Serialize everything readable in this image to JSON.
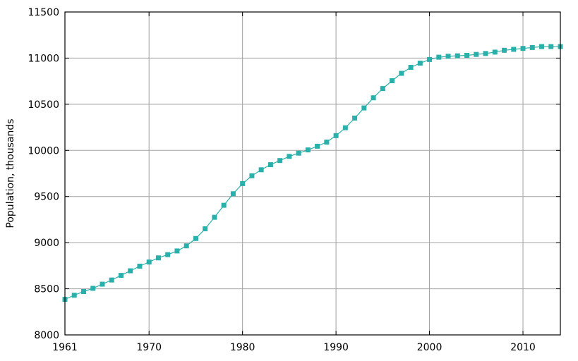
{
  "chart_data": {
    "type": "line",
    "title": "",
    "xlabel": "",
    "ylabel": "Population, thousands",
    "xlim": [
      1961,
      2014
    ],
    "ylim": [
      8000,
      11500
    ],
    "grid": true,
    "legend": "none",
    "x_ticks": [
      1961,
      1970,
      1980,
      1990,
      2000,
      2010
    ],
    "x_tick_labels": [
      "1961",
      "1970",
      "1980",
      "1990",
      "2000",
      "2010"
    ],
    "y_ticks": [
      8000,
      8500,
      9000,
      9500,
      10000,
      10500,
      11000,
      11500
    ],
    "y_tick_labels": [
      "8000",
      "8500",
      "9000",
      "9500",
      "10000",
      "10500",
      "11000",
      "11500"
    ],
    "series": [
      {
        "color": "#2ab0aa",
        "x": [
          1961,
          1962,
          1963,
          1964,
          1965,
          1966,
          1967,
          1968,
          1969,
          1970,
          1971,
          1972,
          1973,
          1974,
          1975,
          1976,
          1977,
          1978,
          1979,
          1980,
          1981,
          1982,
          1983,
          1984,
          1985,
          1986,
          1987,
          1988,
          1989,
          1990,
          1991,
          1992,
          1993,
          1994,
          1995,
          1996,
          1997,
          1998,
          1999,
          2000,
          2001,
          2002,
          2003,
          2004,
          2005,
          2006,
          2007,
          2008,
          2009,
          2010,
          2011,
          2012,
          2013,
          2014
        ],
        "values": [
          8385,
          8430,
          8470,
          8505,
          8550,
          8595,
          8645,
          8695,
          8745,
          8790,
          8835,
          8870,
          8910,
          8965,
          9045,
          9150,
          9275,
          9405,
          9530,
          9640,
          9725,
          9790,
          9845,
          9890,
          9935,
          9970,
          10005,
          10045,
          10090,
          10160,
          10245,
          10350,
          10460,
          10570,
          10670,
          10755,
          10835,
          10900,
          10945,
          10985,
          11010,
          11020,
          11025,
          11030,
          11040,
          11050,
          11065,
          11085,
          11095,
          11105,
          11115,
          11125,
          11125,
          11125
        ]
      }
    ]
  }
}
